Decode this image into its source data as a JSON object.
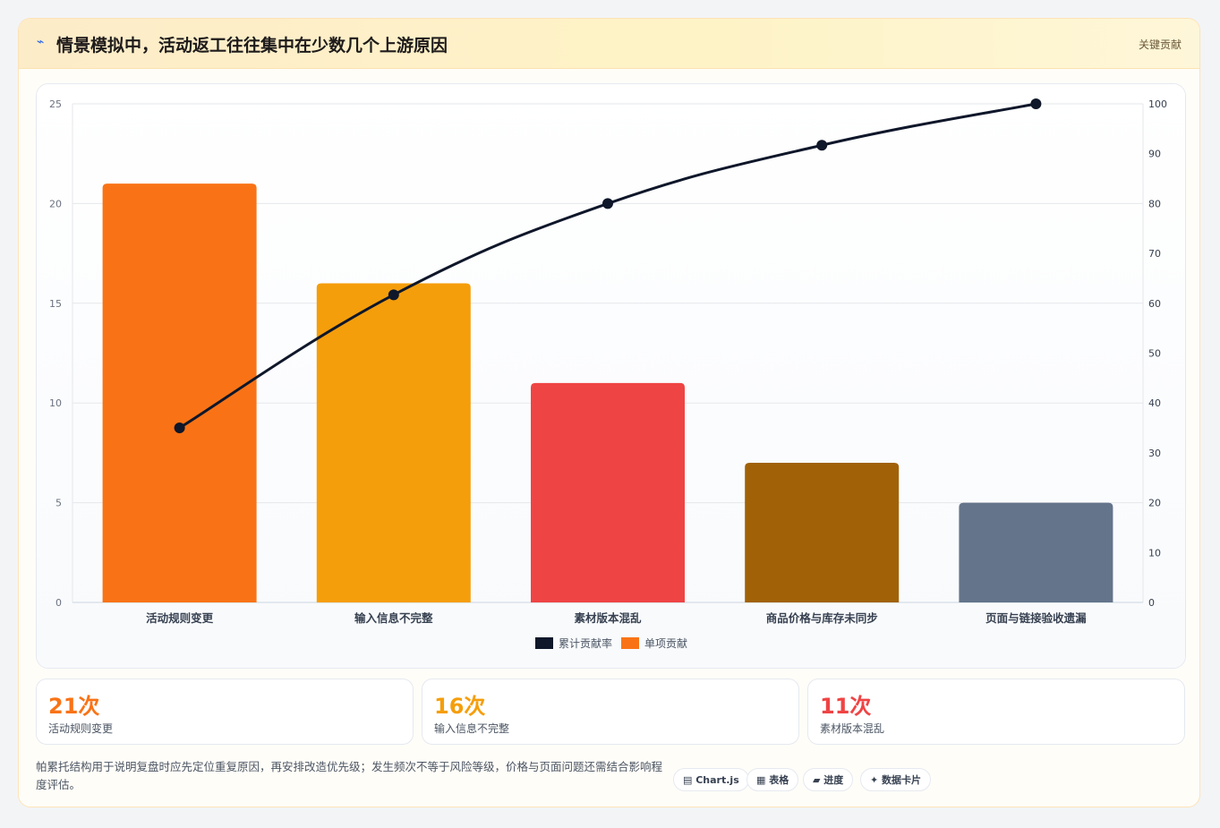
{
  "header": {
    "icon": "lightning-icon",
    "icon_glyph": "⌁",
    "title": "情景模拟中，活动返工往往集中在少数几个上游原因",
    "tag": "关键贡献"
  },
  "chart_data": {
    "type": "bar",
    "categories": [
      "活动规则变更",
      "输入信息不完整",
      "素材版本混乱",
      "商品价格与库存未同步",
      "页面与链接验收遗漏"
    ],
    "series": [
      {
        "name": "单项贡献",
        "type": "bar",
        "axis": "left",
        "values": [
          21,
          16,
          11,
          7,
          5
        ],
        "colors": [
          "#f97316",
          "#f59e0b",
          "#ef4444",
          "#a16207",
          "#64748b"
        ]
      },
      {
        "name": "累计贡献率",
        "type": "line",
        "axis": "right",
        "values": [
          35,
          61.7,
          80,
          91.7,
          100
        ],
        "color": "#0f172a"
      }
    ],
    "ylim_left": [
      0,
      25
    ],
    "yticks_left": [
      0,
      5,
      10,
      15,
      20,
      25
    ],
    "ylim_right": [
      0,
      100
    ],
    "yticks_right": [
      0,
      10,
      20,
      30,
      40,
      50,
      60,
      70,
      80,
      90,
      100
    ],
    "legend": {
      "position": "bottom-center",
      "entries": [
        {
          "label": "累计贡献率",
          "color": "#0f172a"
        },
        {
          "label": "单项贡献",
          "color": "#f97316"
        }
      ]
    },
    "grid": true
  },
  "stats": [
    {
      "value": "21次",
      "label": "活动规则变更",
      "color": "#f97316"
    },
    {
      "value": "16次",
      "label": "输入信息不完整",
      "color": "#f59e0b"
    },
    {
      "value": "11次",
      "label": "素材版本混乱",
      "color": "#ef4444"
    }
  ],
  "footer": {
    "text": "帕累托结构用于说明复盘时应先定位重复原因，再安排改造优先级；发生频次不等于风险等级，价格与页面问题还需结合影响程度评估。",
    "pills": [
      {
        "icon": "chart-icon",
        "glyph": "▤",
        "label": "Chart.js"
      },
      {
        "icon": "table-icon",
        "glyph": "▦",
        "label": "表格"
      },
      {
        "icon": "progress-icon",
        "glyph": "▰",
        "label": "进度"
      },
      {
        "icon": "sparkle-icon",
        "glyph": "✦",
        "label": "数据卡片"
      }
    ]
  }
}
